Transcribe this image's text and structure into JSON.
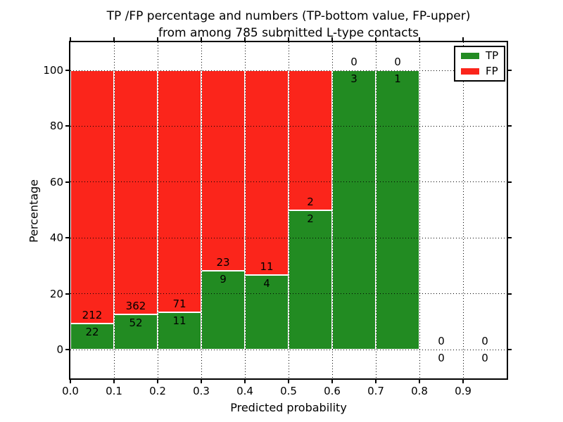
{
  "figure": {
    "title_line1": "TP /FP percentage and numbers (TP-bottom value, FP-upper)",
    "title_line2": "from among 785 submitted L-type contacts",
    "xlabel": "Predicted probability",
    "ylabel": "Percentage"
  },
  "legend": {
    "position": "upper right",
    "items": [
      {
        "label": "TP",
        "color": "#228b22"
      },
      {
        "label": "FP",
        "color": "#fb251b"
      }
    ]
  },
  "chart_data": {
    "type": "bar",
    "stacked": true,
    "normalized_to": "percent of bin total",
    "title": "TP /FP percentage and numbers (TP-bottom value, FP-upper) from among 785 submitted L-type contacts",
    "xlabel": "Predicted probability",
    "ylabel": "Percentage",
    "total_contacts": 785,
    "x_tick_labels": [
      "0.0",
      "0.1",
      "0.2",
      "0.3",
      "0.4",
      "0.5",
      "0.6",
      "0.7",
      "0.8",
      "0.9"
    ],
    "y_ticks": [
      0,
      20,
      40,
      60,
      80,
      100
    ],
    "xlim": [
      0.0,
      1.0
    ],
    "ylim": [
      -10.5,
      110.5
    ],
    "grid": "dotted",
    "bin_width": 0.1,
    "bin_starts": [
      0.0,
      0.1,
      0.2,
      0.3,
      0.4,
      0.5,
      0.6,
      0.7,
      0.8,
      0.9
    ],
    "series": [
      {
        "name": "TP",
        "color": "#228b22",
        "counts": [
          22,
          52,
          11,
          9,
          4,
          2,
          3,
          1,
          0,
          0
        ]
      },
      {
        "name": "FP",
        "color": "#fb251b",
        "counts": [
          212,
          362,
          71,
          23,
          11,
          2,
          0,
          0,
          0,
          0
        ]
      }
    ],
    "tp_percent_per_bin": [
      9.4,
      12.6,
      13.4,
      28.1,
      26.7,
      50.0,
      100.0,
      100.0,
      null,
      null
    ]
  }
}
